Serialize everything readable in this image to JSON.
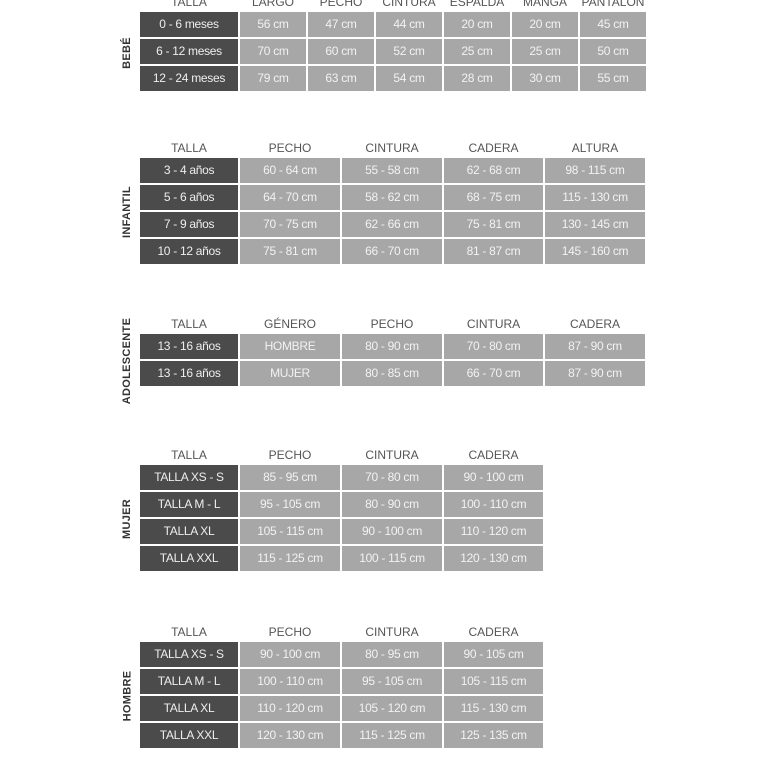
{
  "colors": {
    "size_cell": "#4b4b4b",
    "value_cell": "#a7a7a7",
    "header_text": "#555555"
  },
  "tables": [
    {
      "label": "BEBÉ",
      "headers": [
        "TALLA",
        "LARGO",
        "PECHO",
        "CINTURA",
        "ESPALDA",
        "MANGA",
        "PANTALÓN"
      ],
      "rows": [
        [
          "0 - 6 meses",
          "56 cm",
          "47 cm",
          "44 cm",
          "20 cm",
          "20 cm",
          "45 cm"
        ],
        [
          "6 - 12 meses",
          "70 cm",
          "60 cm",
          "52 cm",
          "25 cm",
          "25 cm",
          "50 cm"
        ],
        [
          "12 - 24 meses",
          "79 cm",
          "63 cm",
          "54 cm",
          "28 cm",
          "30 cm",
          "55 cm"
        ]
      ]
    },
    {
      "label": "INFANTIL",
      "headers": [
        "TALLA",
        "PECHO",
        "CINTURA",
        "CADERA",
        "ALTURA"
      ],
      "rows": [
        [
          "3 - 4 años",
          "60 - 64 cm",
          "55 - 58 cm",
          "62 - 68 cm",
          "98 - 115 cm"
        ],
        [
          "5 - 6 años",
          "64 - 70 cm",
          "58 - 62 cm",
          "68 - 75 cm",
          "115 - 130 cm"
        ],
        [
          "7 - 9 años",
          "70 - 75 cm",
          "62 - 66 cm",
          "75 - 81 cm",
          "130 - 145 cm"
        ],
        [
          "10 - 12 años",
          "75 - 81 cm",
          "66 - 70 cm",
          "81 - 87 cm",
          "145 - 160 cm"
        ]
      ]
    },
    {
      "label": "ADOLESCENTE",
      "headers": [
        "TALLA",
        "GÉNERO",
        "PECHO",
        "CINTURA",
        "CADERA"
      ],
      "rows": [
        [
          "13 - 16 años",
          "HOMBRE",
          "80 - 90 cm",
          "70 - 80 cm",
          "87 - 90 cm"
        ],
        [
          "13 - 16 años",
          "MUJER",
          "80 - 85 cm",
          "66 - 70 cm",
          "87 - 90 cm"
        ]
      ]
    },
    {
      "label": "MUJER",
      "headers": [
        "TALLA",
        "PECHO",
        "CINTURA",
        "CADERA"
      ],
      "rows": [
        [
          "TALLA XS - S",
          "85 - 95 cm",
          "70 - 80 cm",
          "90 - 100 cm"
        ],
        [
          "TALLA M - L",
          "95 - 105 cm",
          "80 - 90 cm",
          "100 - 110 cm"
        ],
        [
          "TALLA XL",
          "105 - 115 cm",
          "90 - 100 cm",
          "110 - 120 cm"
        ],
        [
          "TALLA XXL",
          "115 - 125 cm",
          "100 - 115 cm",
          "120 - 130 cm"
        ]
      ]
    },
    {
      "label": "HOMBRE",
      "headers": [
        "TALLA",
        "PECHO",
        "CINTURA",
        "CADERA"
      ],
      "rows": [
        [
          "TALLA XS - S",
          "90 - 100 cm",
          "80 - 95 cm",
          "90 - 105 cm"
        ],
        [
          "TALLA M - L",
          "100 - 110 cm",
          "95 - 105 cm",
          "105 - 115 cm"
        ],
        [
          "TALLA XL",
          "110 - 120 cm",
          "105 - 120 cm",
          "115 - 130 cm"
        ],
        [
          "TALLA XXL",
          "120 - 130 cm",
          "115 - 125 cm",
          "125 - 135 cm"
        ]
      ]
    }
  ]
}
